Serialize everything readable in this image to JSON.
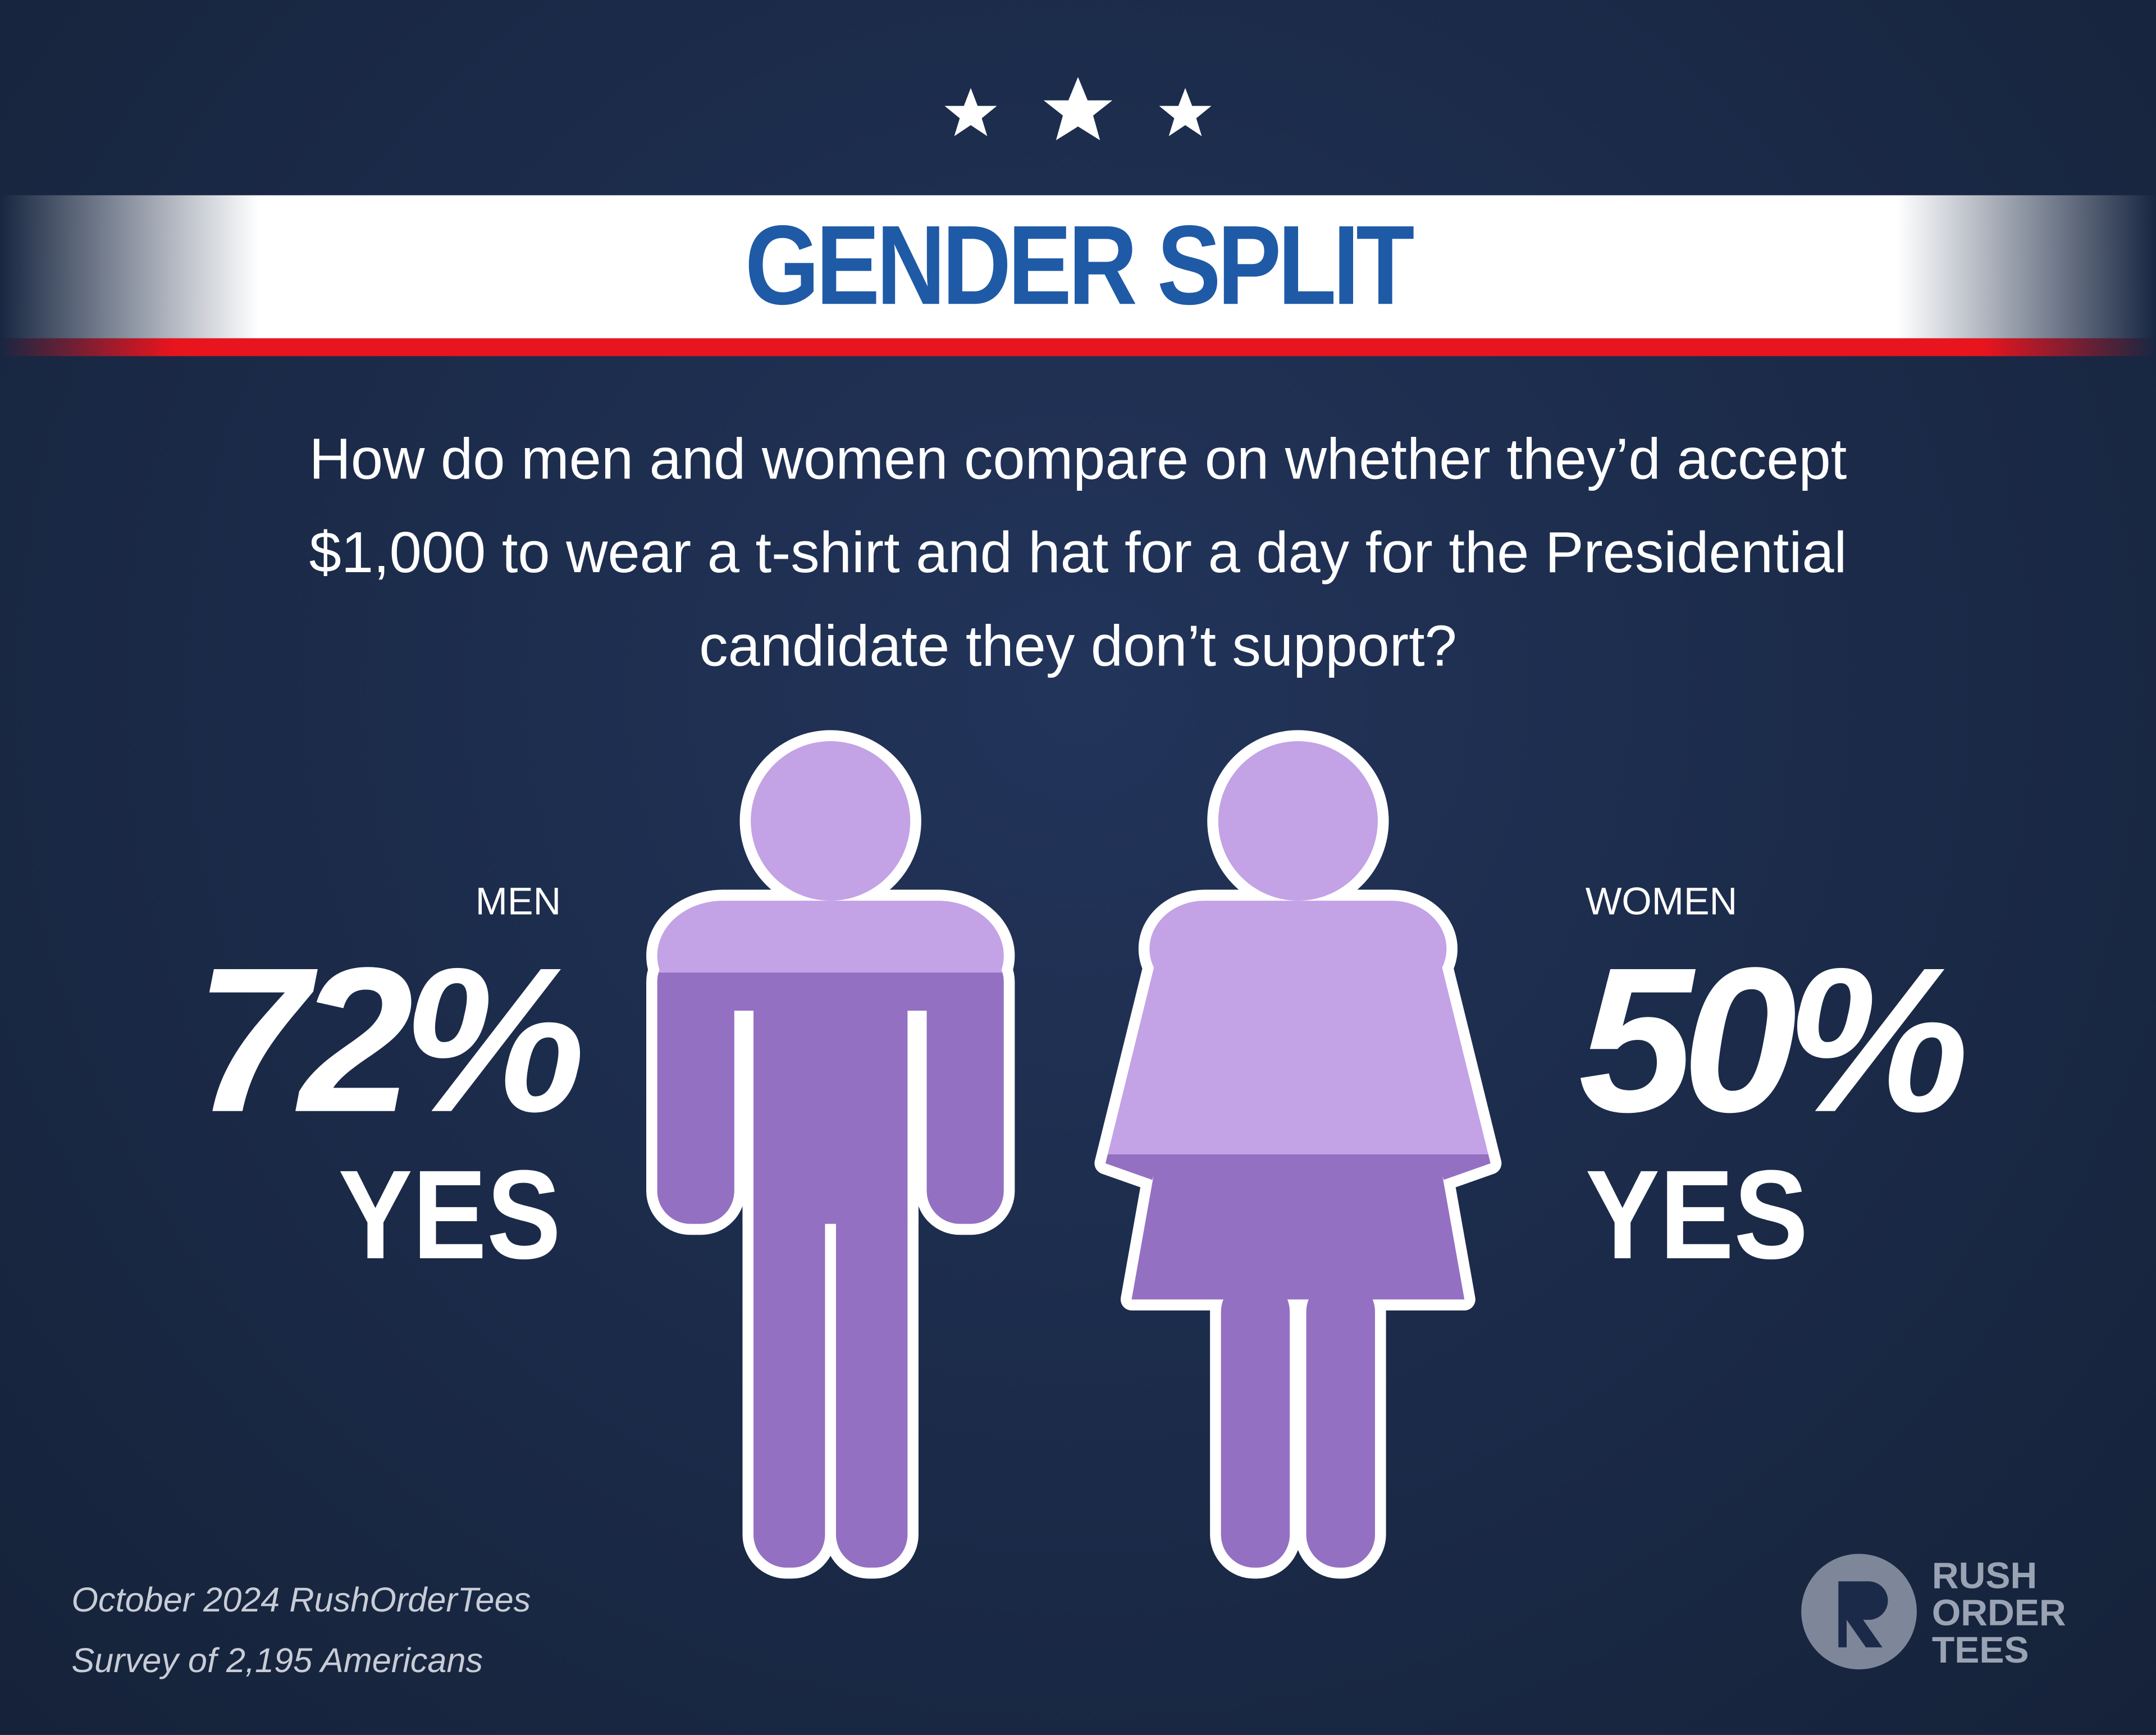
{
  "chart_data": {
    "type": "pictogram",
    "title": "GENDER SPLIT",
    "subtitle": "How do men and women compare on whether they’d accept $1,000 to wear a t-shirt and hat for a day for the Presidential candidate they don’t support?",
    "categories": [
      "MEN",
      "WOMEN"
    ],
    "values": [
      72,
      50
    ],
    "value_labels": [
      "72%",
      "50%"
    ],
    "response": "YES",
    "ylim": [
      0,
      100
    ],
    "colors": {
      "filled": "#9470c2",
      "empty": "#c3a2e6"
    },
    "source": [
      "October 2024 RushOrderTees",
      "Survey of 2,195 Americans"
    ],
    "logo": [
      "RUSH",
      "ORDER",
      "TEES"
    ]
  }
}
